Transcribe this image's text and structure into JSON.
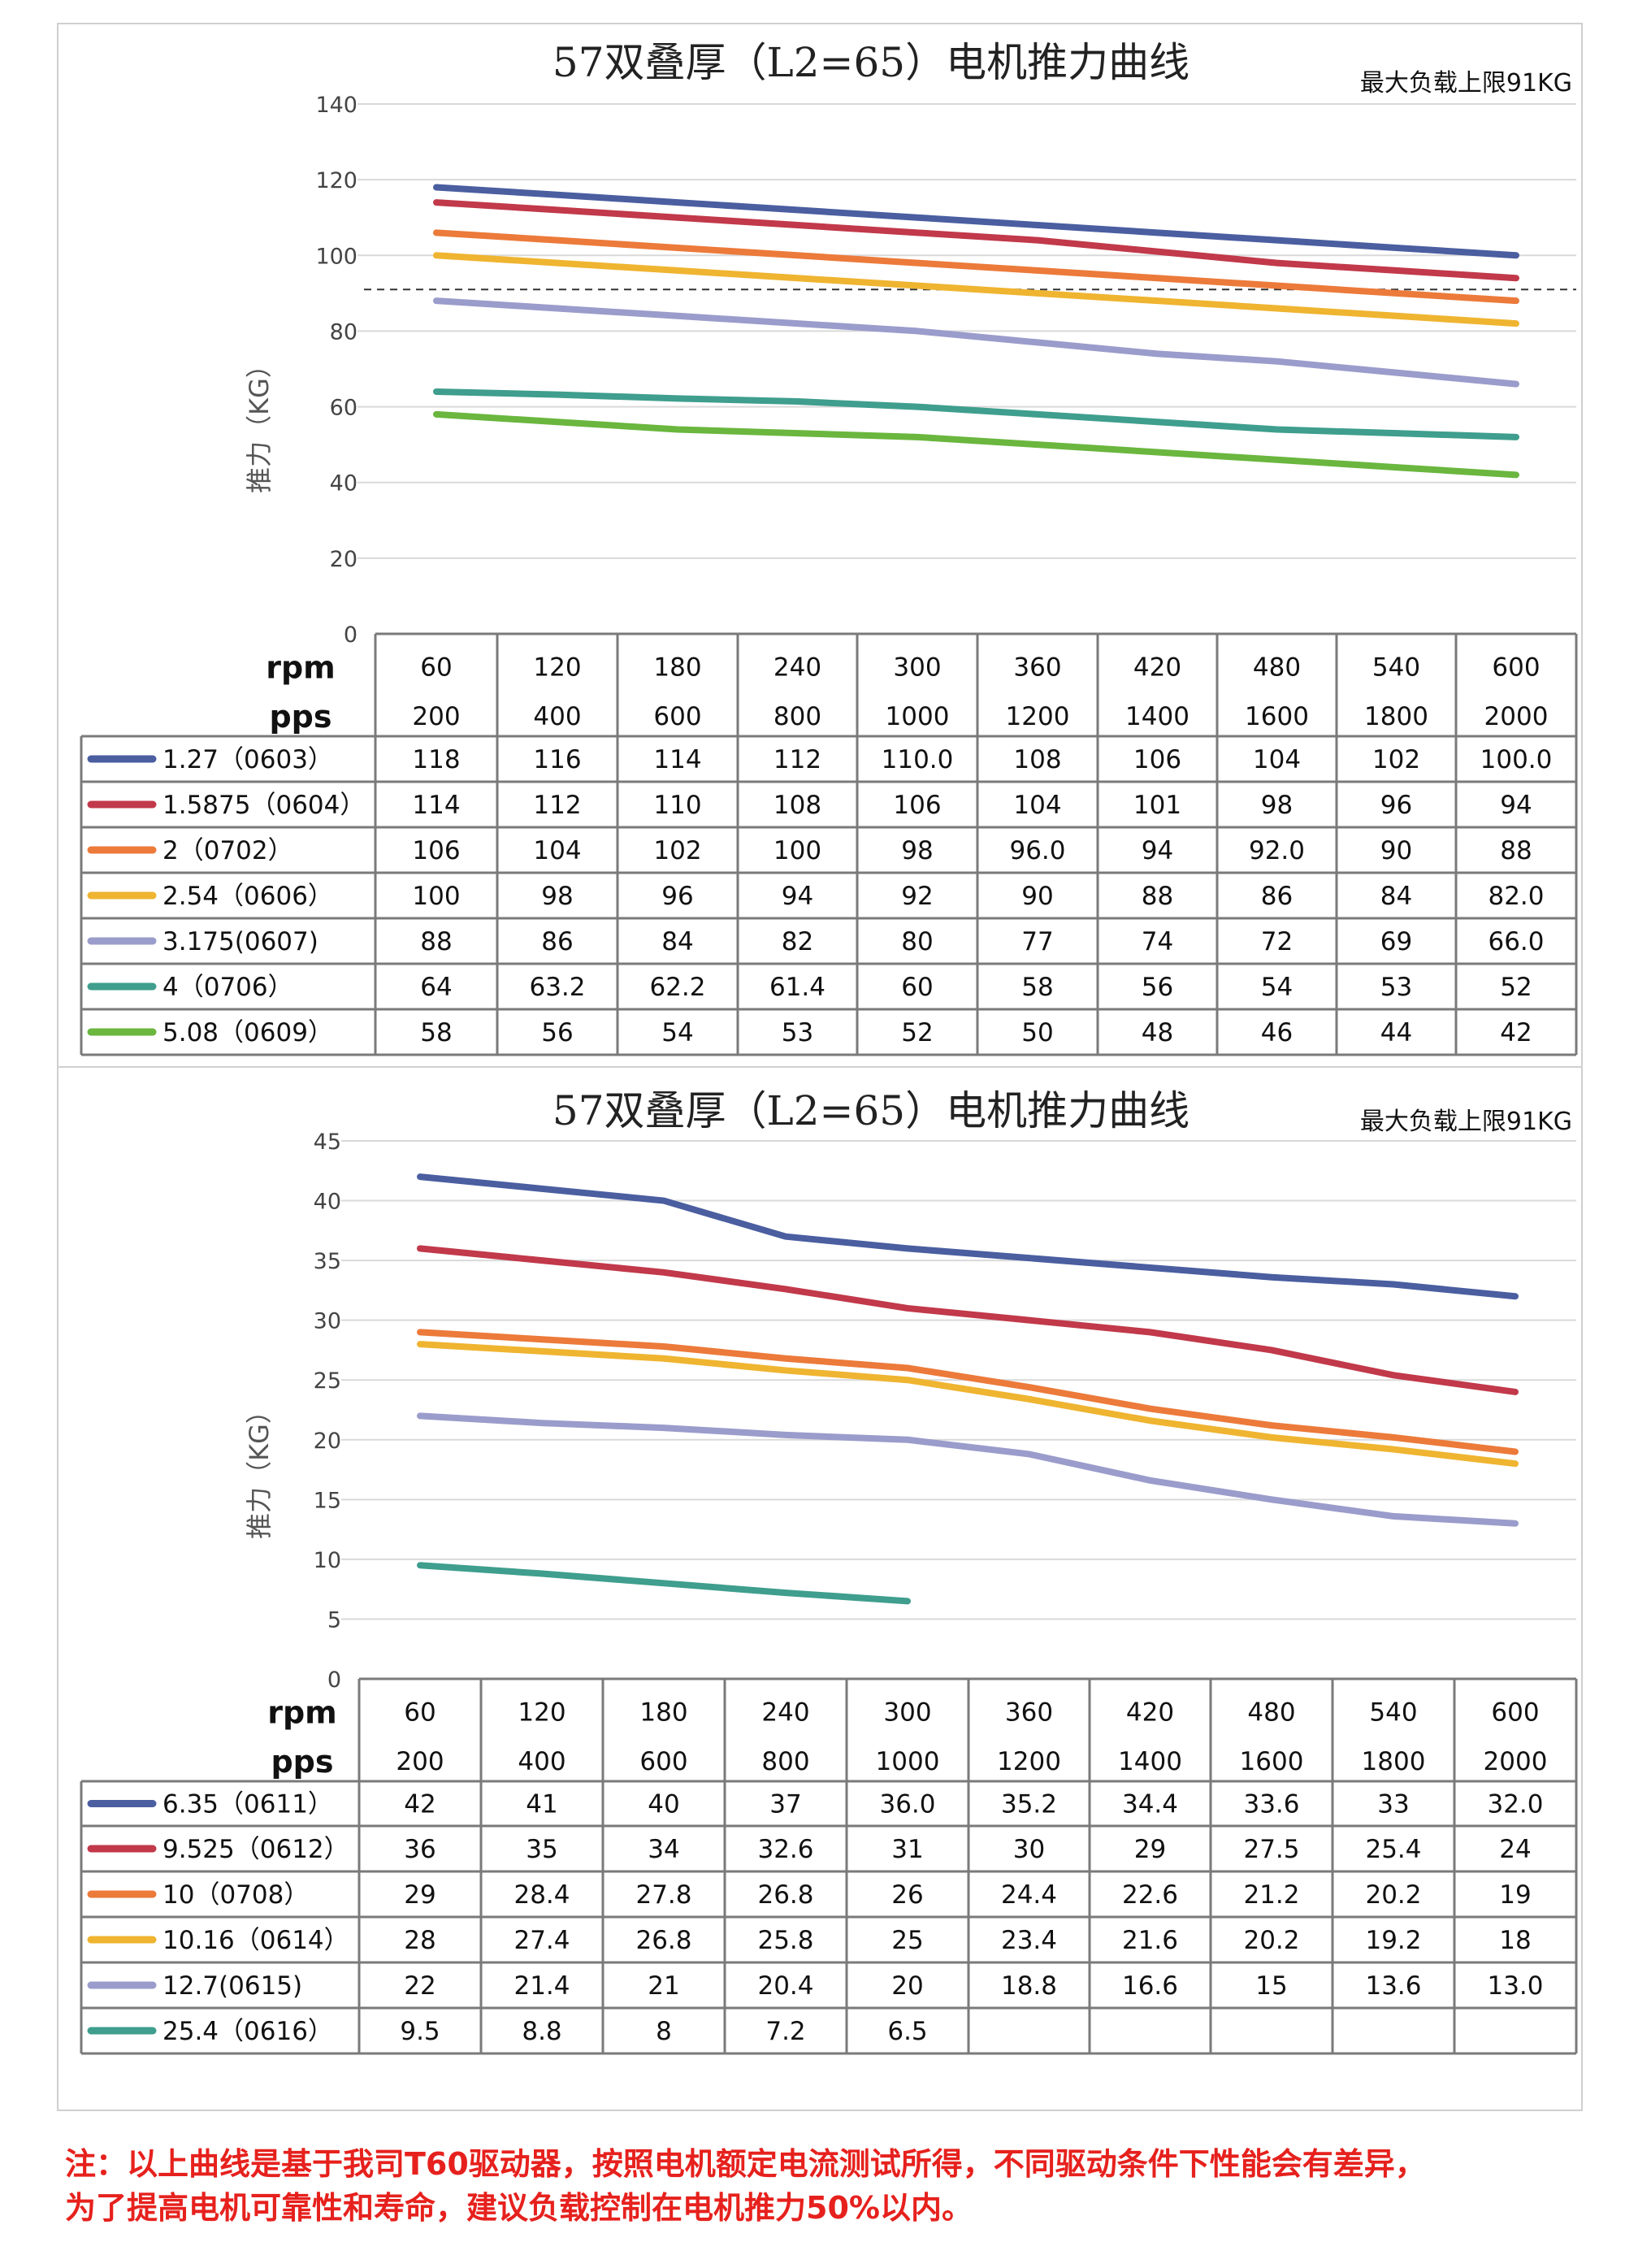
{
  "chart_data": [
    {
      "type": "line",
      "title": "57双叠厚（L2=65）电机推力曲线",
      "subtitle": "最大负载上限91KG",
      "ylabel": "推力（KG）",
      "xlabel_rows": [
        "rpm",
        "pps"
      ],
      "ylim": [
        0,
        140
      ],
      "yticks": [
        0,
        20,
        40,
        60,
        80,
        100,
        120,
        140
      ],
      "reference_line": 91,
      "grid": true,
      "categories_rpm": [
        "60",
        "120",
        "180",
        "240",
        "300",
        "360",
        "420",
        "480",
        "540",
        "600"
      ],
      "categories_pps": [
        "200",
        "400",
        "600",
        "800",
        "1000",
        "1200",
        "1400",
        "1600",
        "1800",
        "2000"
      ],
      "series": [
        {
          "name": "1.27（0603）",
          "color": "#4a5ea0",
          "labels": [
            "118",
            "116",
            "114",
            "112",
            "110.0",
            "108",
            "106",
            "104",
            "102",
            "100.0"
          ]
        },
        {
          "name": "1.5875（0604）",
          "color": "#c1394a",
          "labels": [
            "114",
            "112",
            "110",
            "108",
            "106",
            "104",
            "101",
            "98",
            "96",
            "94"
          ]
        },
        {
          "name": "2（0702）",
          "color": "#ec7a3a",
          "labels": [
            "106",
            "104",
            "102",
            "100",
            "98",
            "96.0",
            "94",
            "92.0",
            "90",
            "88"
          ]
        },
        {
          "name": "2.54（0606）",
          "color": "#efb430",
          "labels": [
            "100",
            "98",
            "96",
            "94",
            "92",
            "90",
            "88",
            "86",
            "84",
            "82.0"
          ]
        },
        {
          "name": "3.175(0607)",
          "color": "#9a9ccb",
          "labels": [
            "88",
            "86",
            "84",
            "82",
            "80",
            "77",
            "74",
            "72",
            "69",
            "66.0"
          ]
        },
        {
          "name": "4（0706）",
          "color": "#3f9e8e",
          "labels": [
            "64",
            "63.2",
            "62.2",
            "61.4",
            "60",
            "58",
            "56",
            "54",
            "53",
            "52"
          ]
        },
        {
          "name": "5.08（0609）",
          "color": "#6ab63e",
          "labels": [
            "58",
            "56",
            "54",
            "53",
            "52",
            "50",
            "48",
            "46",
            "44",
            "42"
          ]
        }
      ]
    },
    {
      "type": "line",
      "title": "57双叠厚（L2=65）电机推力曲线",
      "subtitle": "最大负载上限91KG",
      "ylabel": "推力（KG）",
      "xlabel_rows": [
        "rpm",
        "pps"
      ],
      "ylim": [
        0,
        45
      ],
      "yticks": [
        0,
        5,
        10,
        15,
        20,
        25,
        30,
        35,
        40,
        45
      ],
      "grid": true,
      "categories_rpm": [
        "60",
        "120",
        "180",
        "240",
        "300",
        "360",
        "420",
        "480",
        "540",
        "600"
      ],
      "categories_pps": [
        "200",
        "400",
        "600",
        "800",
        "1000",
        "1200",
        "1400",
        "1600",
        "1800",
        "2000"
      ],
      "series": [
        {
          "name": "6.35（0611）",
          "color": "#4a5ea0",
          "labels": [
            "42",
            "41",
            "40",
            "37",
            "36.0",
            "35.2",
            "34.4",
            "33.6",
            "33",
            "32.0"
          ]
        },
        {
          "name": "9.525（0612）",
          "color": "#c1394a",
          "labels": [
            "36",
            "35",
            "34",
            "32.6",
            "31",
            "30",
            "29",
            "27.5",
            "25.4",
            "24"
          ]
        },
        {
          "name": "10（0708）",
          "color": "#ec7a3a",
          "labels": [
            "29",
            "28.4",
            "27.8",
            "26.8",
            "26",
            "24.4",
            "22.6",
            "21.2",
            "20.2",
            "19"
          ]
        },
        {
          "name": "10.16（0614）",
          "color": "#efb430",
          "labels": [
            "28",
            "27.4",
            "26.8",
            "25.8",
            "25",
            "23.4",
            "21.6",
            "20.2",
            "19.2",
            "18"
          ]
        },
        {
          "name": "12.7(0615)",
          "color": "#9a9ccb",
          "labels": [
            "22",
            "21.4",
            "21",
            "20.4",
            "20",
            "18.8",
            "16.6",
            "15",
            "13.6",
            "13.0"
          ]
        },
        {
          "name": "25.4（0616）",
          "color": "#3f9e8e",
          "labels": [
            "9.5",
            "8.8",
            "8",
            "7.2",
            "6.5",
            "",
            "",
            "",
            "",
            ""
          ]
        }
      ]
    }
  ],
  "note": {
    "line1": "注：以上曲线是基于我司T60驱动器，按照电机额定电流测试所得，不同驱动条件下性能会有差异，",
    "line2": "为了提高电机可靠性和寿命，建议负载控制在电机推力50%以内。"
  }
}
